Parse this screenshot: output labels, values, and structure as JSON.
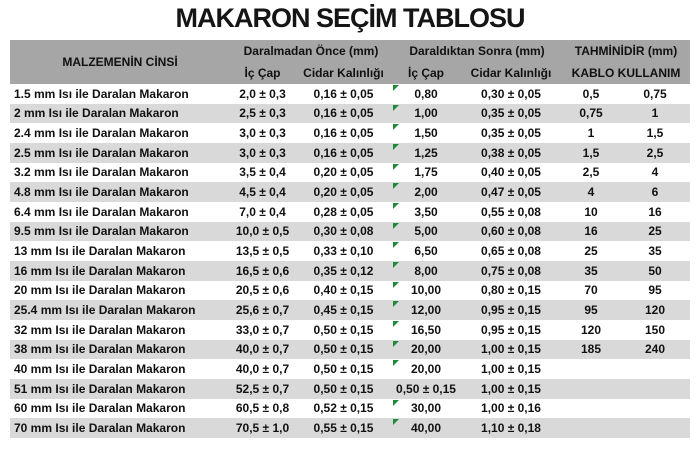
{
  "title": "MAKARON SEÇİM TABLOSU",
  "colors": {
    "header_bg": "#a6a6a6",
    "stripe_bg": "#d9d9d9",
    "flag_green": "#1f8a3a"
  },
  "table": {
    "header": {
      "material": "MALZEMENİN CİNSİ",
      "group_before": "Daralmadan Önce (mm)",
      "group_after": "Daraldıktan Sonra (mm)",
      "group_estimate": "TAHMİNİDİR (mm)",
      "sub_ic_cap_before": "İç Çap",
      "sub_cidar_before": "Cidar Kalınlığı",
      "sub_ic_cap_after": "İç Çap",
      "sub_cidar_after": "Cidar Kalınlığı",
      "sub_kablo": "KABLO KULLANIM"
    },
    "rows": [
      {
        "material": "1.5 mm Isı ile Daralan Makaron",
        "ic_cap_once": "2,0 ± 0,3",
        "cidar_once": "0,16 ± 0,05",
        "ic_cap_sonra": "0,80",
        "cidar_sonra": "0,30 ± 0,05",
        "kablo_min": "0,5",
        "kablo_max": "0,75",
        "flag": true
      },
      {
        "material": "2 mm Isı ile Daralan Makaron",
        "ic_cap_once": "2,5 ± 0,3",
        "cidar_once": "0,16 ± 0,05",
        "ic_cap_sonra": "1,00",
        "cidar_sonra": "0,35 ± 0,05",
        "kablo_min": "0,75",
        "kablo_max": "1",
        "flag": true
      },
      {
        "material": "2.4 mm Isı ile Daralan Makaron",
        "ic_cap_once": "3,0 ± 0,3",
        "cidar_once": "0,16 ± 0,05",
        "ic_cap_sonra": "1,50",
        "cidar_sonra": "0,35 ± 0,05",
        "kablo_min": "1",
        "kablo_max": "1,5",
        "flag": true
      },
      {
        "material": "2.5 mm Isı ile Daralan Makaron",
        "ic_cap_once": "3,0 ± 0,3",
        "cidar_once": "0,16 ± 0,05",
        "ic_cap_sonra": "1,25",
        "cidar_sonra": "0,38 ± 0,05",
        "kablo_min": "1,5",
        "kablo_max": "2,5",
        "flag": true
      },
      {
        "material": "3.2 mm Isı ile Daralan Makaron",
        "ic_cap_once": "3,5 ± 0,4",
        "cidar_once": "0,20 ± 0,05",
        "ic_cap_sonra": "1,75",
        "cidar_sonra": "0,40 ± 0,05",
        "kablo_min": "2,5",
        "kablo_max": "4",
        "flag": true
      },
      {
        "material": "4.8 mm Isı ile Daralan Makaron",
        "ic_cap_once": "4,5 ± 0,4",
        "cidar_once": "0,20 ± 0,05",
        "ic_cap_sonra": "2,00",
        "cidar_sonra": "0,47 ± 0,05",
        "kablo_min": "4",
        "kablo_max": "6",
        "flag": true
      },
      {
        "material": "6.4 mm Isı ile Daralan Makaron",
        "ic_cap_once": "7,0 ± 0,4",
        "cidar_once": "0,28 ± 0,05",
        "ic_cap_sonra": "3,50",
        "cidar_sonra": "0,55 ± 0,08",
        "kablo_min": "10",
        "kablo_max": "16",
        "flag": true
      },
      {
        "material": "9.5 mm Isı ile Daralan Makaron",
        "ic_cap_once": "10,0 ± 0,5",
        "cidar_once": "0,30 ± 0,08",
        "ic_cap_sonra": "5,00",
        "cidar_sonra": "0,60 ± 0,08",
        "kablo_min": "16",
        "kablo_max": "25",
        "flag": true
      },
      {
        "material": "13 mm Isı ile Daralan Makaron",
        "ic_cap_once": "13,5 ± 0,5",
        "cidar_once": "0,33 ± 0,10",
        "ic_cap_sonra": "6,50",
        "cidar_sonra": "0,65 ± 0,08",
        "kablo_min": "25",
        "kablo_max": "35",
        "flag": true
      },
      {
        "material": "16 mm Isı ile Daralan Makaron",
        "ic_cap_once": "16,5 ± 0,6",
        "cidar_once": "0,35 ± 0,12",
        "ic_cap_sonra": "8,00",
        "cidar_sonra": "0,75 ± 0,08",
        "kablo_min": "35",
        "kablo_max": "50",
        "flag": true
      },
      {
        "material": "20 mm Isı ile Daralan Makaron",
        "ic_cap_once": "20,5 ± 0,6",
        "cidar_once": "0,40 ± 0,15",
        "ic_cap_sonra": "10,00",
        "cidar_sonra": "0,80 ± 0,15",
        "kablo_min": "70",
        "kablo_max": "95",
        "flag": true
      },
      {
        "material": "25.4 mm Isı ile Daralan Makaron",
        "ic_cap_once": "25,6 ± 0,7",
        "cidar_once": "0,45 ± 0,15",
        "ic_cap_sonra": "12,00",
        "cidar_sonra": "0,95 ± 0,15",
        "kablo_min": "95",
        "kablo_max": "120",
        "flag": true
      },
      {
        "material": "32 mm Isı ile Daralan Makaron",
        "ic_cap_once": "33,0 ± 0,7",
        "cidar_once": "0,50 ± 0,15",
        "ic_cap_sonra": "16,50",
        "cidar_sonra": "0,95 ± 0,15",
        "kablo_min": "120",
        "kablo_max": "150",
        "flag": true
      },
      {
        "material": "38 mm Isı ile Daralan Makaron",
        "ic_cap_once": "40,0 ± 0,7",
        "cidar_once": "0,50 ± 0,15",
        "ic_cap_sonra": "20,00",
        "cidar_sonra": "1,00 ± 0,15",
        "kablo_min": "185",
        "kablo_max": "240",
        "flag": true
      },
      {
        "material": "40 mm Isı ile Daralan Makaron",
        "ic_cap_once": "40,0 ± 0,7",
        "cidar_once": "0,50 ± 0,15",
        "ic_cap_sonra": "20,00",
        "cidar_sonra": "1,00 ± 0,15",
        "kablo_min": "",
        "kablo_max": "",
        "flag": true
      },
      {
        "material": "51 mm Isı ile Daralan Makaron",
        "ic_cap_once": "52,5 ± 0,7",
        "cidar_once": "0,50 ± 0,15",
        "ic_cap_sonra": "0,50 ± 0,15",
        "cidar_sonra": "1,00 ± 0,15",
        "kablo_min": "",
        "kablo_max": "",
        "flag": false
      },
      {
        "material": "60 mm Isı ile Daralan Makaron",
        "ic_cap_once": "60,5 ± 0,8",
        "cidar_once": "0,52 ± 0,15",
        "ic_cap_sonra": "30,00",
        "cidar_sonra": "1,00 ± 0,16",
        "kablo_min": "",
        "kablo_max": "",
        "flag": true
      },
      {
        "material": "70 mm Isı ile Daralan Makaron",
        "ic_cap_once": "70,5 ± 1,0",
        "cidar_once": "0,55 ± 0,15",
        "ic_cap_sonra": "40,00",
        "cidar_sonra": "1,10 ± 0,18",
        "kablo_min": "",
        "kablo_max": "",
        "flag": true
      }
    ]
  }
}
